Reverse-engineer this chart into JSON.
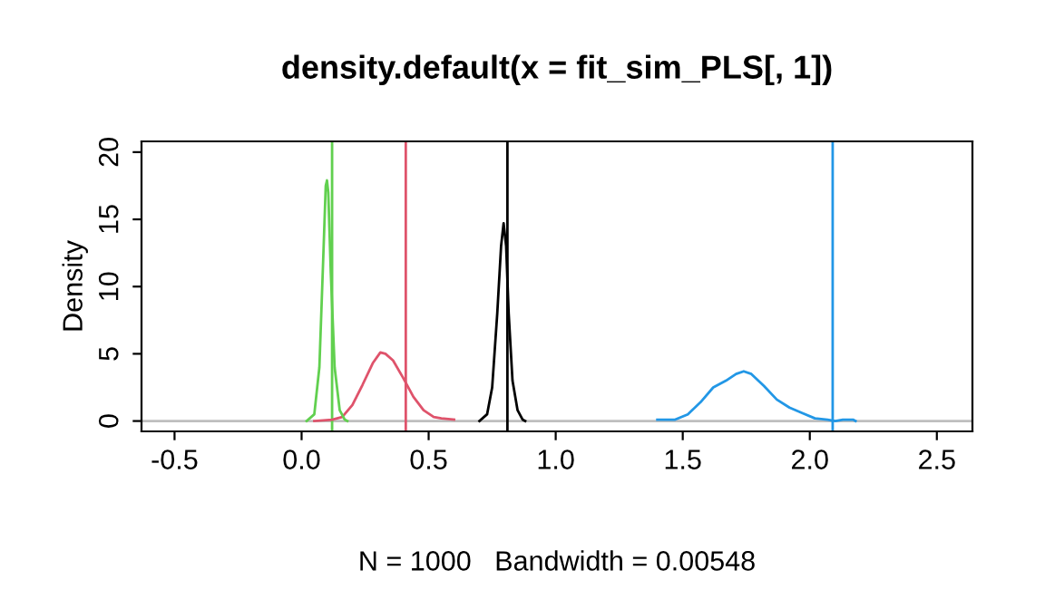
{
  "chart_data": {
    "type": "line",
    "title": "density.default(x = fit_sim_PLS[, 1])",
    "xlabel": "N = 1000   Bandwidth = 0.00548",
    "ylabel": "Density",
    "xlim": [
      -0.63,
      2.64
    ],
    "ylim": [
      -0.77,
      20.8
    ],
    "xticks": [
      {
        "value": -0.5,
        "label": "-0.5"
      },
      {
        "value": 0,
        "label": "0.0"
      },
      0.5,
      {
        "value": 1,
        "label": "1.0"
      },
      1.5,
      {
        "value": 2,
        "label": "2.0"
      },
      2.5
    ],
    "yticks": [
      0,
      5,
      10,
      15,
      20
    ],
    "grid": false,
    "legend": false,
    "marker": "none",
    "line_style": "solid",
    "series": [
      {
        "color": "#000000",
        "x": [
          0.7,
          0.73,
          0.75,
          0.77,
          0.785,
          0.795,
          0.805,
          0.815,
          0.83,
          0.85,
          0.87,
          0.88
        ],
        "values": [
          0,
          0.5,
          2.5,
          8,
          13,
          14.7,
          13,
          8,
          3,
          0.8,
          0.1,
          0
        ]
      },
      {
        "color": "#df536b",
        "x": [
          0.05,
          0.12,
          0.16,
          0.2,
          0.24,
          0.28,
          0.31,
          0.33,
          0.36,
          0.4,
          0.44,
          0.48,
          0.52,
          0.55,
          0.6
        ],
        "values": [
          0,
          0.1,
          0.3,
          1.2,
          2.7,
          4.3,
          5.1,
          5.0,
          4.5,
          3.2,
          1.8,
          0.8,
          0.3,
          0.2,
          0.1
        ]
      },
      {
        "color": "#61d04f",
        "x": [
          0.02,
          0.05,
          0.07,
          0.085,
          0.095,
          0.1,
          0.105,
          0.115,
          0.13,
          0.15,
          0.17,
          0.18
        ],
        "values": [
          0,
          0.5,
          4,
          12,
          17.5,
          17.9,
          17,
          11,
          4,
          0.8,
          0.1,
          0
        ]
      },
      {
        "color": "#2297e6",
        "x": [
          1.4,
          1.47,
          1.52,
          1.57,
          1.62,
          1.67,
          1.71,
          1.74,
          1.77,
          1.82,
          1.87,
          1.92,
          1.97,
          2.02,
          2.07,
          2.1,
          2.13,
          2.17,
          2.18
        ],
        "values": [
          0.1,
          0.1,
          0.5,
          1.4,
          2.5,
          3.0,
          3.5,
          3.7,
          3.5,
          2.6,
          1.6,
          1.0,
          0.6,
          0.2,
          0.1,
          0,
          0.1,
          0.1,
          0
        ]
      }
    ],
    "ref_lines": [
      {
        "axis": "y",
        "value": 0,
        "color": "#bebebe"
      },
      {
        "axis": "x",
        "value": 0.81,
        "color": "#000000"
      },
      {
        "axis": "x",
        "value": 0.41,
        "color": "#df536b"
      },
      {
        "axis": "x",
        "value": 0.12,
        "color": "#61d04f"
      },
      {
        "axis": "x",
        "value": 2.09,
        "color": "#2297e6"
      }
    ]
  }
}
